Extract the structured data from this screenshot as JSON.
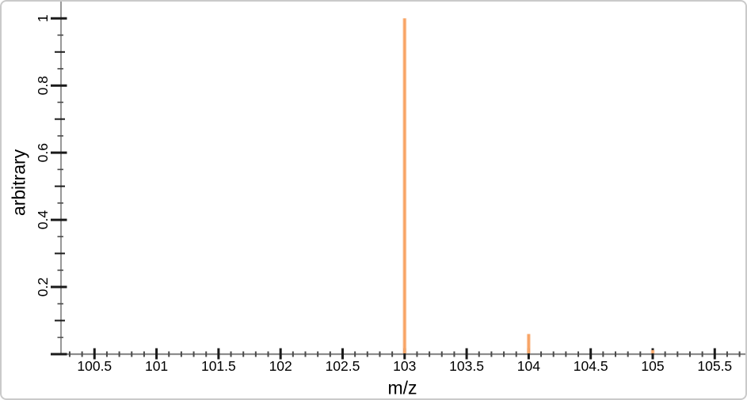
{
  "window": {
    "background": "#ffffff",
    "border_color": "#cacaca"
  },
  "chart_data": {
    "type": "bar",
    "variant": "mass-spectrum-stick",
    "title": "",
    "xlabel": "m/z",
    "ylabel": "arbitrary",
    "xlim": [
      100.23,
      105.76
    ],
    "ylim": [
      0,
      1.05
    ],
    "grid": false,
    "legend": null,
    "x_major_ticks": [
      {
        "value": 100.5,
        "label": "100.5"
      },
      {
        "value": 101,
        "label": "101"
      },
      {
        "value": 101.5,
        "label": "101.5"
      },
      {
        "value": 102,
        "label": "102"
      },
      {
        "value": 102.5,
        "label": "102.5"
      },
      {
        "value": 103,
        "label": "103"
      },
      {
        "value": 103.5,
        "label": "103.5"
      },
      {
        "value": 104,
        "label": "104"
      },
      {
        "value": 104.5,
        "label": "104.5"
      },
      {
        "value": 105,
        "label": "105"
      },
      {
        "value": 105.5,
        "label": "105.5"
      }
    ],
    "x_minor_tick_step": 0.1,
    "y_major_ticks": [
      {
        "value": 0,
        "label": ""
      },
      {
        "value": 0.2,
        "label": "0.2"
      },
      {
        "value": 0.4,
        "label": "0.4"
      },
      {
        "value": 0.6,
        "label": "0.6"
      },
      {
        "value": 0.8,
        "label": "0.8"
      },
      {
        "value": 1,
        "label": "1"
      }
    ],
    "y_medium_tick_step": 0.1,
    "y_minor_tick_step": 0.05,
    "peaks": [
      {
        "mz": 103,
        "intensity": 1.0
      },
      {
        "mz": 104,
        "intensity": 0.06
      },
      {
        "mz": 105,
        "intensity": 0.012
      }
    ],
    "colors": {
      "peak": "#f8a465",
      "axis_line": "#8c8c8c",
      "tick_major": "#1a1a1a",
      "tick_minor": "#4a4a4a",
      "label_text": "#000000"
    }
  }
}
